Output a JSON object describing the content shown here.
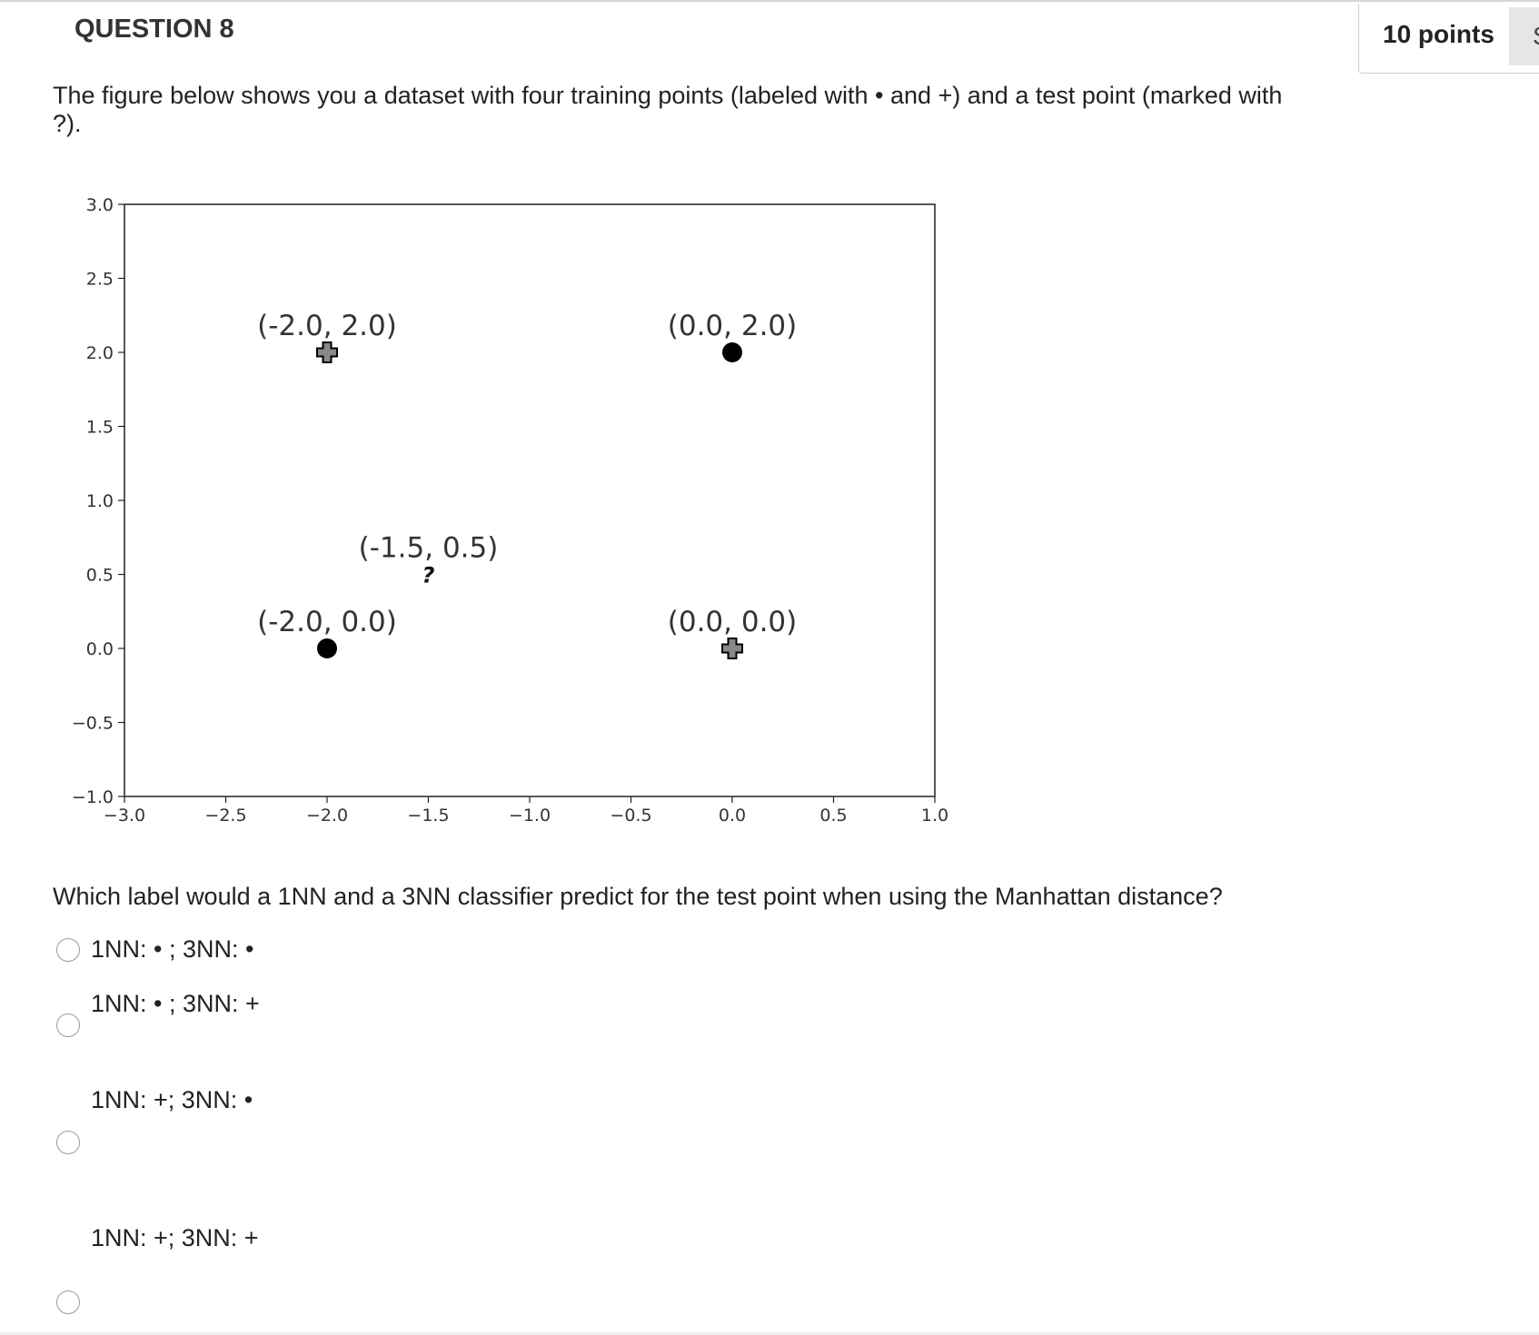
{
  "question": {
    "title": "QUESTION 8",
    "points": "10 points",
    "save_label": "S",
    "text": "The figure below shows you a dataset with four training points (labeled  with • and +) and a test point (marked with ?).",
    "prompt": "Which label would a 1NN and a 3NN classifier predict for the test point when using the Manhattan distance?"
  },
  "options": [
    {
      "label": "1NN: • ; 3NN: •"
    },
    {
      "label": "1NN: • ; 3NN: +"
    },
    {
      "label": "1NN: +; 3NN: •"
    },
    {
      "label": "1NN: +; 3NN: +"
    }
  ],
  "chart_data": {
    "type": "scatter",
    "xlim": [
      -3.0,
      1.0
    ],
    "ylim": [
      -1.0,
      3.0
    ],
    "xticks": [
      "−3.0",
      "−2.5",
      "−2.0",
      "−1.5",
      "−1.0",
      "−0.5",
      "0.0",
      "0.5",
      "1.0"
    ],
    "yticks": [
      "3.0",
      "2.5",
      "2.0",
      "1.5",
      "1.0",
      "0.5",
      "0.0",
      "−0.5",
      "−1.0"
    ],
    "xtick_values": [
      -3.0,
      -2.5,
      -2.0,
      -1.5,
      -1.0,
      -0.5,
      0.0,
      0.5,
      1.0
    ],
    "ytick_values": [
      3.0,
      2.5,
      2.0,
      1.5,
      1.0,
      0.5,
      0.0,
      -0.5,
      -1.0
    ],
    "grid": false,
    "points": [
      {
        "x": -2.0,
        "y": 2.0,
        "marker": "plus",
        "label": "(-2.0, 2.0)"
      },
      {
        "x": 0.0,
        "y": 2.0,
        "marker": "dot",
        "label": "(0.0, 2.0)"
      },
      {
        "x": -1.5,
        "y": 0.5,
        "marker": "question",
        "label": "(-1.5, 0.5)"
      },
      {
        "x": -2.0,
        "y": 0.0,
        "marker": "dot",
        "label": "(-2.0, 0.0)"
      },
      {
        "x": 0.0,
        "y": 0.0,
        "marker": "plus",
        "label": "(0.0, 0.0)"
      }
    ],
    "colors": {
      "dot": "#000000",
      "plus_fill": "#888888",
      "plus_stroke": "#000000"
    }
  }
}
